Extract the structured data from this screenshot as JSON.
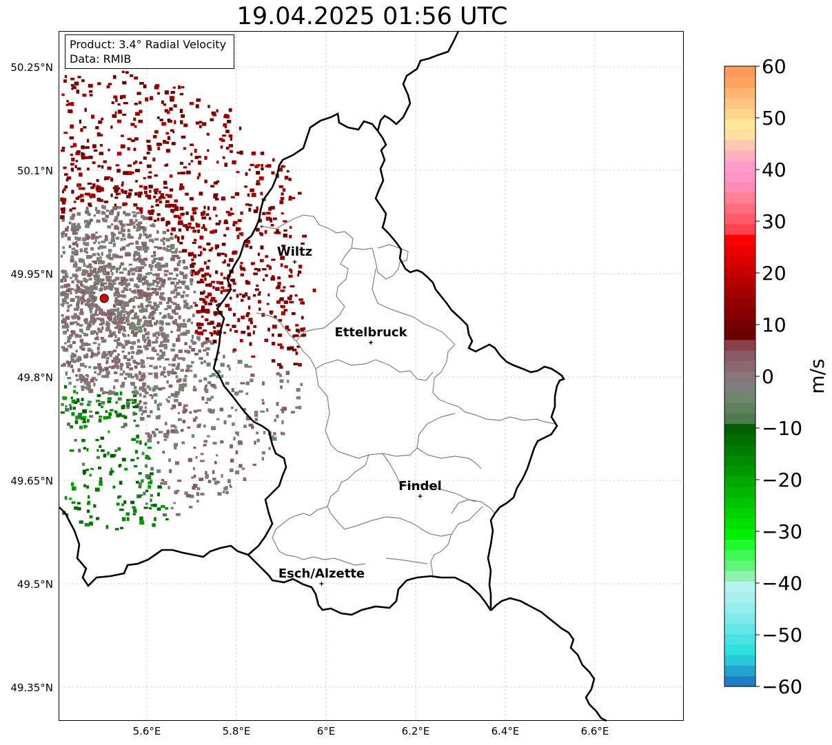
{
  "title": "19.04.2025 01:56 UTC",
  "info_box": {
    "product_line": "Product: 3.4° Radial Velocity",
    "data_line": "Data: RMIB"
  },
  "map": {
    "lon_range": [
      5.4,
      6.8
    ],
    "lat_range": [
      49.3,
      50.3
    ],
    "lon_ticks": [
      {
        "value": 5.6,
        "label": "5.6°E"
      },
      {
        "value": 5.8,
        "label": "5.8°E"
      },
      {
        "value": 6.0,
        "label": "6°E"
      },
      {
        "value": 6.2,
        "label": "6.2°E"
      },
      {
        "value": 6.4,
        "label": "6.4°E"
      },
      {
        "value": 6.6,
        "label": "6.6°E"
      }
    ],
    "lat_ticks": [
      {
        "value": 49.35,
        "label": "49.35°N"
      },
      {
        "value": 49.5,
        "label": "49.5°N"
      },
      {
        "value": 49.65,
        "label": "49.65°N"
      },
      {
        "value": 49.8,
        "label": "49.8°N"
      },
      {
        "value": 49.95,
        "label": "49.95°N"
      },
      {
        "value": 50.1,
        "label": "50.1°N"
      },
      {
        "value": 50.25,
        "label": "50.25°N"
      }
    ],
    "grid": true,
    "radar_site": {
      "lon": 5.505,
      "lat": 49.914,
      "color": "#e00000"
    },
    "places": [
      {
        "name": "Wiltz",
        "lon": 5.93,
        "lat": 49.967
      },
      {
        "name": "Ettelbruck",
        "lon": 6.1,
        "lat": 49.85
      },
      {
        "name": "Findel",
        "lon": 6.21,
        "lat": 49.627
      },
      {
        "name": "Esch/Alzette",
        "lon": 5.99,
        "lat": 49.5
      }
    ]
  },
  "colorbar": {
    "unit": "m/s",
    "min": -60,
    "max": 60,
    "ticks": [
      {
        "value": 60,
        "label": "60"
      },
      {
        "value": 50,
        "label": "50"
      },
      {
        "value": 40,
        "label": "40"
      },
      {
        "value": 30,
        "label": "30"
      },
      {
        "value": 20,
        "label": "20"
      },
      {
        "value": 10,
        "label": "10"
      },
      {
        "value": 0,
        "label": "0"
      },
      {
        "value": -10,
        "label": "−10"
      },
      {
        "value": -20,
        "label": "−20"
      },
      {
        "value": -30,
        "label": "−30"
      },
      {
        "value": -40,
        "label": "−40"
      },
      {
        "value": -50,
        "label": "−50"
      },
      {
        "value": -60,
        "label": "−60"
      }
    ],
    "colors_bottom_to_top": [
      "#1f7fc2",
      "#23a3cf",
      "#27c8d8",
      "#2fe0e0",
      "#4ae2e2",
      "#62e6e6",
      "#7eeaea",
      "#95eeee",
      "#a8f0f0",
      "#b5f2f2",
      "#8ff2b0",
      "#5ff57a",
      "#40f852",
      "#20f830",
      "#00ee00",
      "#00e000",
      "#00d200",
      "#00c400",
      "#00b600",
      "#00a800",
      "#009800",
      "#008a00",
      "#007c00",
      "#006e00",
      "#006000",
      "#4f7a4f",
      "#5f805f",
      "#6f876f",
      "#7c7f7c",
      "#857777",
      "#8a6870",
      "#8a5a62",
      "#883f48",
      "#6a0000",
      "#780000",
      "#860000",
      "#940000",
      "#a40000",
      "#b40000",
      "#c60000",
      "#d80000",
      "#ea0000",
      "#ff0000",
      "#ff4050",
      "#ff5a6a",
      "#ff6e80",
      "#ff7f95",
      "#ff8cb4",
      "#ff94c8",
      "#ff9ccc",
      "#ffb0c0",
      "#ffc8b0",
      "#ffe0a0",
      "#ffe898",
      "#ffd48c",
      "#ffc480",
      "#ffb470",
      "#ffa460",
      "#ff9a58"
    ]
  }
}
